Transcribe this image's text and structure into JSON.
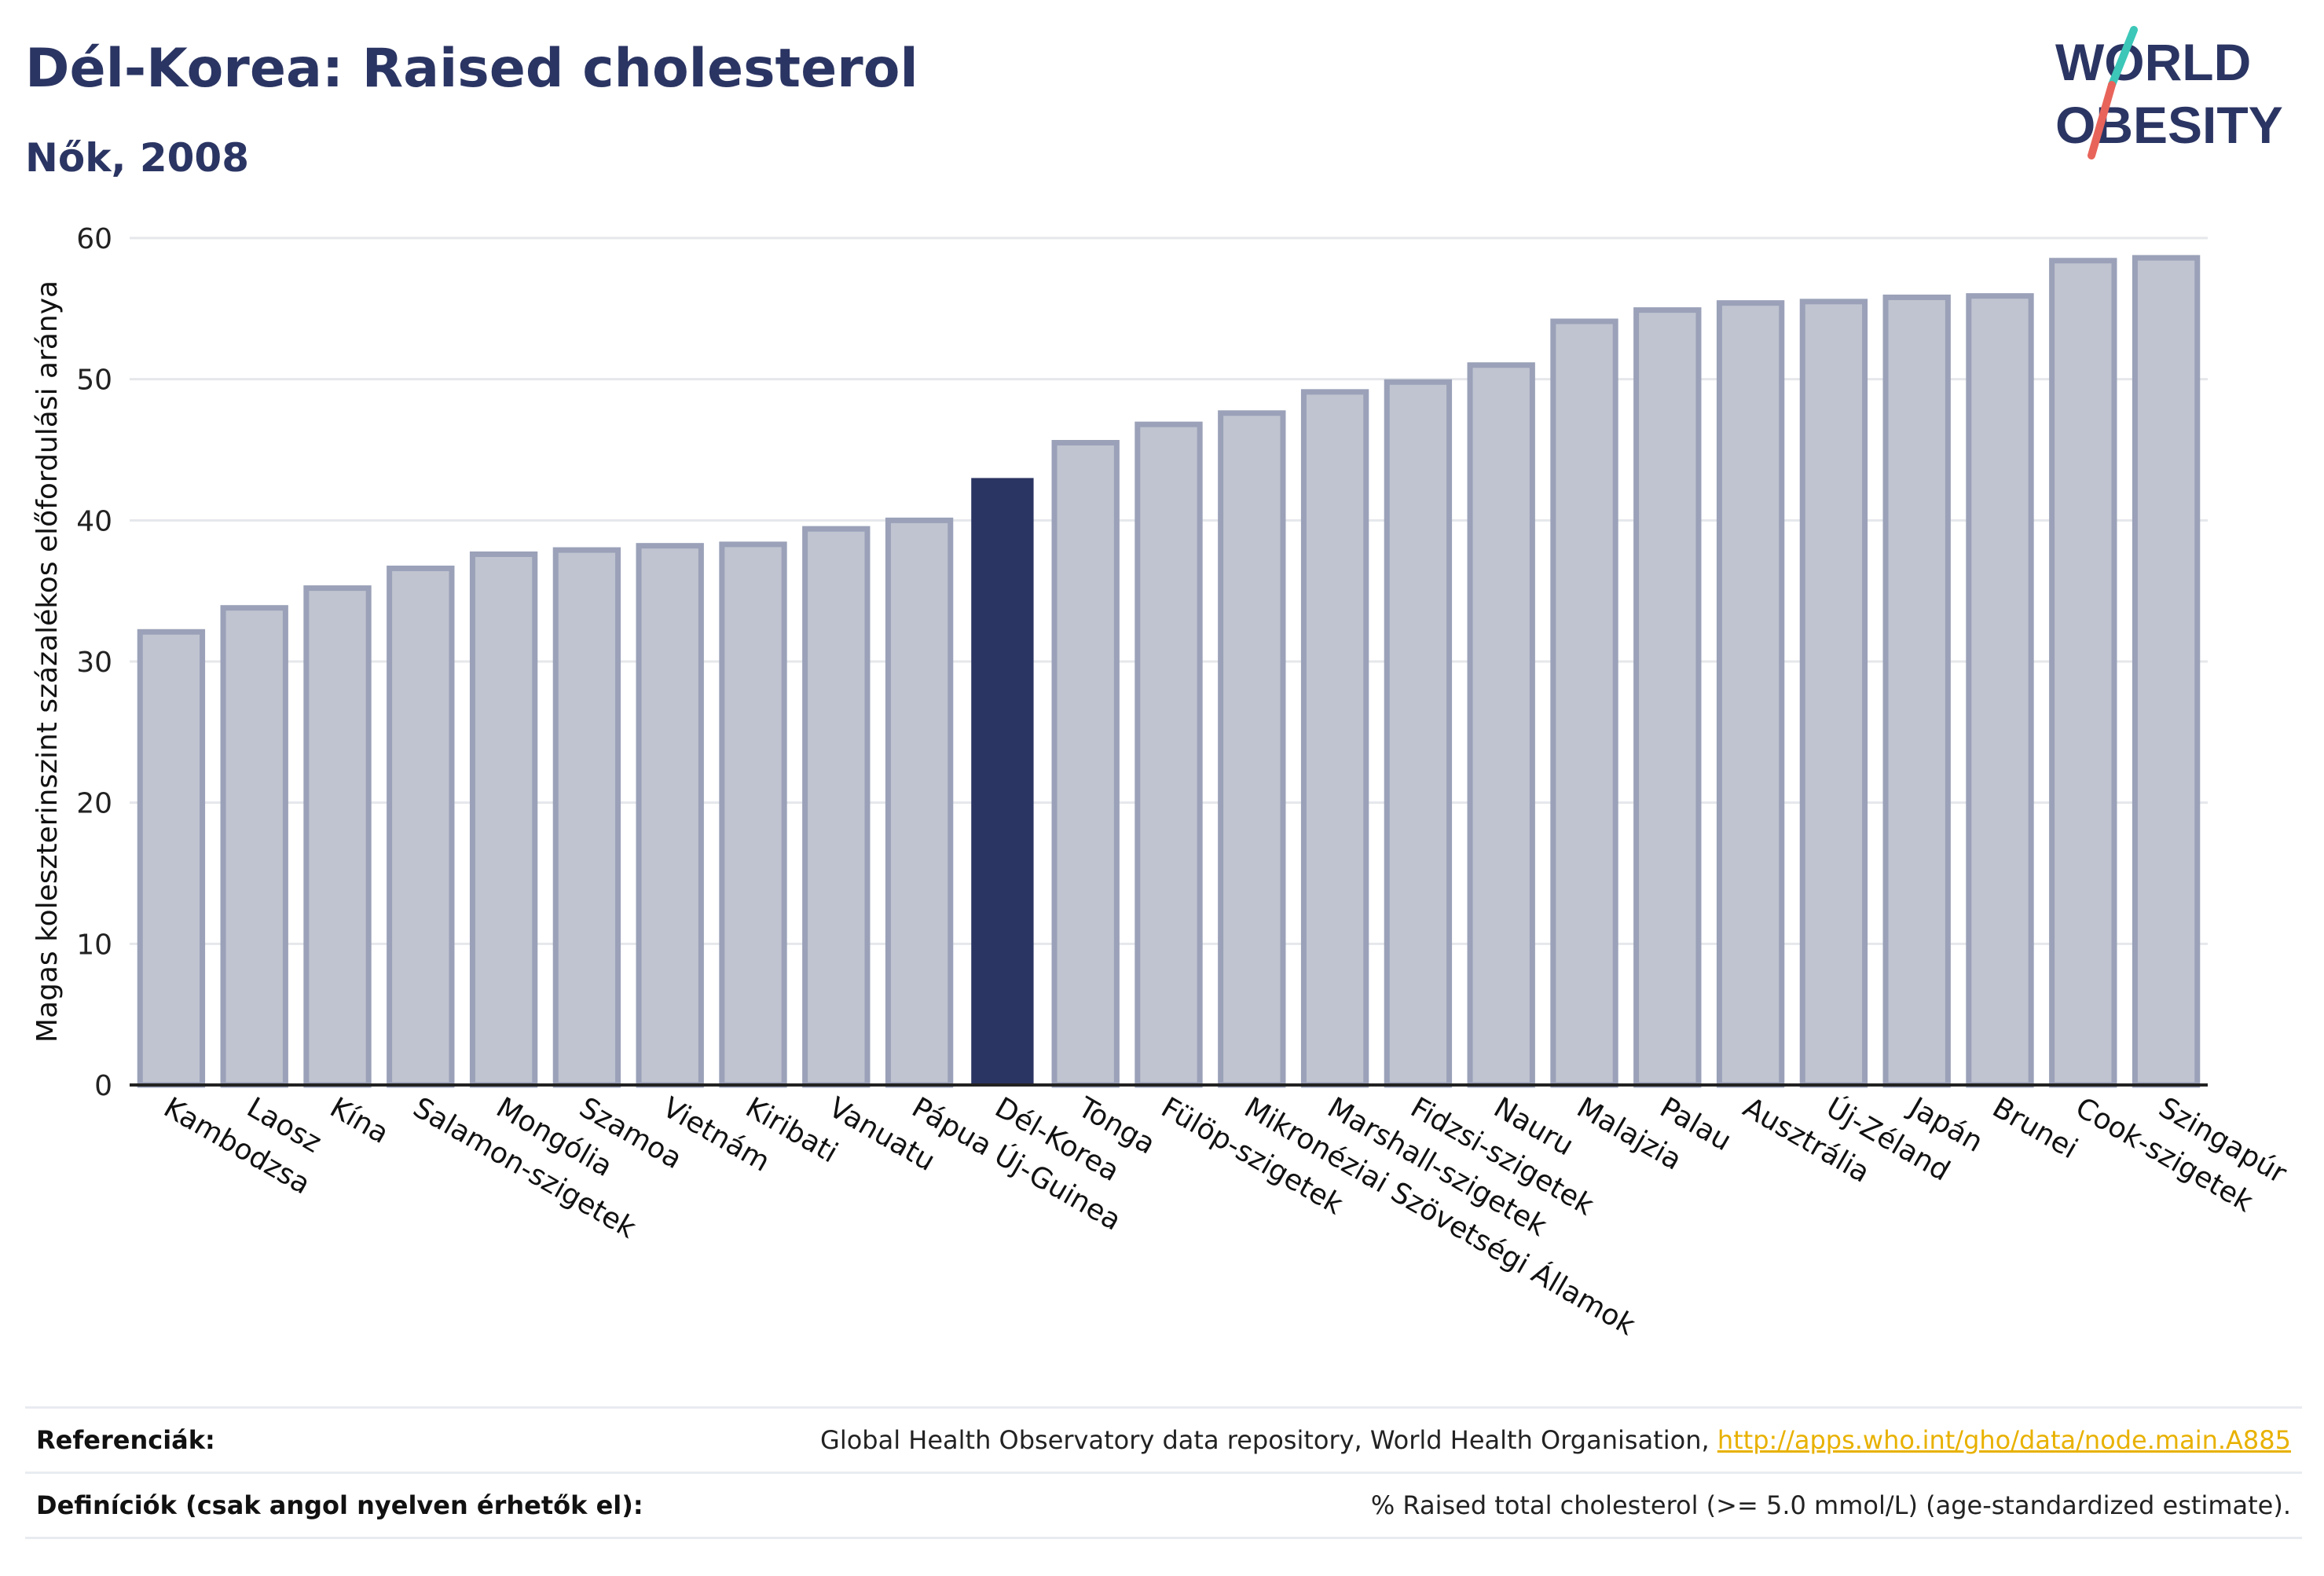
{
  "header": {
    "title": "Dél-Korea: Raised cholesterol",
    "subtitle": "Nők, 2008"
  },
  "logo": {
    "line1": "WORLD",
    "line2": "OBESITY"
  },
  "colors": {
    "bar_default_fill": "#c0c4d0",
    "bar_default_stroke": "#9aa1b8",
    "bar_highlight": "#2b3563",
    "title": "#2b3563",
    "grid": "#e5e7eb",
    "link": "#e8b100",
    "logo_accent_teal": "#3cc7b8",
    "logo_accent_red": "#e8645a"
  },
  "chart_data": {
    "type": "bar",
    "ylabel": "Magas koleszterinszint százalékos előfordulási aránya",
    "ylim": [
      0,
      60
    ],
    "yticks": [
      0,
      10,
      20,
      30,
      40,
      50,
      60
    ],
    "grid": true,
    "highlight": "Dél-Korea",
    "categories": [
      "Kambodzsa",
      "Laosz",
      "Kína",
      "Salamon-szigetek",
      "Mongólia",
      "Szamoa",
      "Vietnám",
      "Kiribati",
      "Vanuatu",
      "Pápua Új-Guinea",
      "Dél-Korea",
      "Tonga",
      "Fülöp-szigetek",
      "Mikronéziai Szövetségi Államok",
      "Marshall-szigetek",
      "Fidzsi-szigetek",
      "Nauru",
      "Malajzia",
      "Palau",
      "Ausztrália",
      "Új-Zéland",
      "Japán",
      "Brunei",
      "Cook-szigetek",
      "Szingapúr"
    ],
    "values": [
      32.1,
      33.8,
      35.2,
      36.6,
      37.6,
      37.9,
      38.2,
      38.3,
      39.4,
      40.0,
      43.0,
      45.5,
      46.8,
      47.6,
      49.1,
      49.8,
      51.0,
      54.1,
      54.9,
      55.4,
      55.5,
      55.8,
      55.9,
      58.4,
      58.6
    ]
  },
  "references": {
    "ref_label": "Referenciák:",
    "ref_text": "Global Health Observatory data repository, World Health Organisation, ",
    "ref_link": "http://apps.who.int/gho/data/node.main.A885",
    "def_label": "Definíciók (csak angol nyelven érhetők el):",
    "def_text": "% Raised total cholesterol (>= 5.0 mmol/L) (age-standardized estimate)."
  }
}
